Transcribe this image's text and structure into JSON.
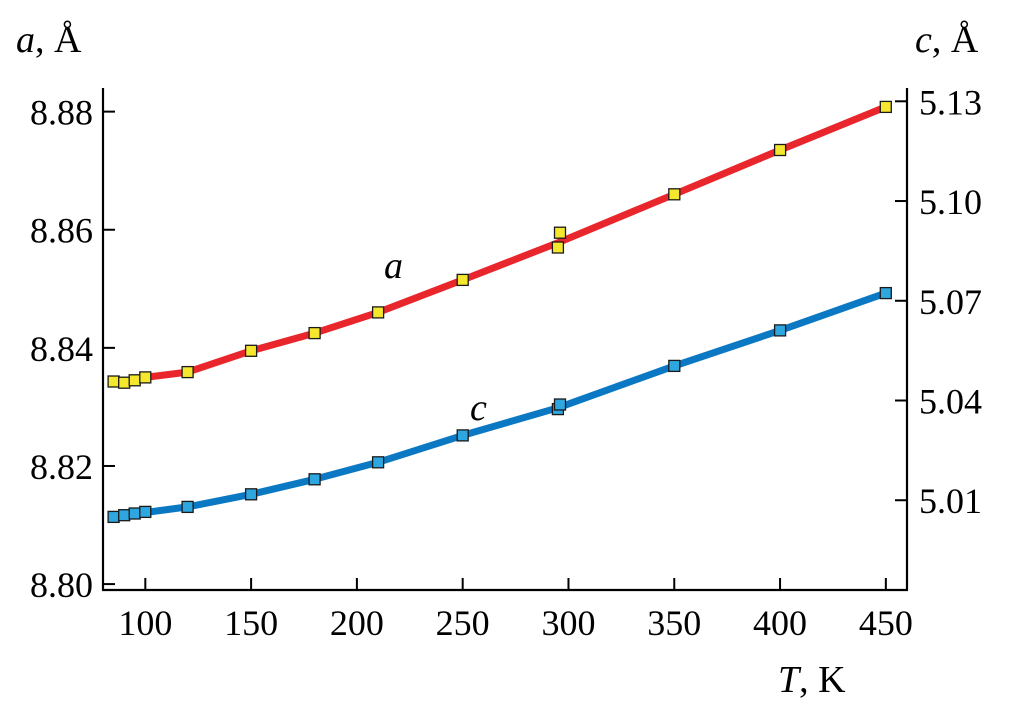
{
  "chart_data": {
    "type": "line",
    "x_axis": {
      "label_var": "T",
      "label_unit": ", K",
      "range": [
        80,
        460
      ],
      "ticks": [
        100,
        150,
        200,
        250,
        300,
        350,
        400,
        450
      ]
    },
    "y_left": {
      "label_var": "a",
      "label_unit": ", Å",
      "range": [
        8.799,
        8.884
      ],
      "ticks": [
        8.8,
        8.82,
        8.84,
        8.86,
        8.88
      ],
      "tick_labels": [
        "8.80",
        "8.82",
        "8.84",
        "8.86",
        "8.88"
      ]
    },
    "y_right": {
      "label_var": "c",
      "label_unit": ", Å",
      "range": [
        4.983,
        5.134
      ],
      "ticks": [
        5.01,
        5.04,
        5.07,
        5.1,
        5.13
      ],
      "tick_labels": [
        "5.01",
        "5.04",
        "5.07",
        "5.10",
        "5.13"
      ]
    },
    "series": [
      {
        "name": "a",
        "axis": "left",
        "color": "#e8262b",
        "marker_color": "#f5e62e",
        "points": [
          [
            85,
            8.8343
          ],
          [
            90,
            8.8341
          ],
          [
            95,
            8.8345
          ],
          [
            100,
            8.835
          ],
          [
            120,
            8.8359
          ],
          [
            150,
            8.8395
          ],
          [
            180,
            8.8425
          ],
          [
            210,
            8.846
          ],
          [
            250,
            8.8515
          ],
          [
            295,
            8.857
          ],
          [
            296,
            8.8595
          ],
          [
            350,
            8.866
          ],
          [
            400,
            8.8735
          ],
          [
            450,
            8.8808
          ]
        ],
        "line_points": [
          [
            85,
            8.8343
          ],
          [
            90,
            8.8343
          ],
          [
            100,
            8.835
          ],
          [
            120,
            8.8359
          ],
          [
            150,
            8.8395
          ],
          [
            180,
            8.8425
          ],
          [
            210,
            8.846
          ],
          [
            250,
            8.8515
          ],
          [
            295,
            8.8578
          ],
          [
            350,
            8.866
          ],
          [
            400,
            8.8735
          ],
          [
            450,
            8.8808
          ]
        ]
      },
      {
        "name": "c",
        "axis": "right",
        "color": "#0a78c2",
        "marker_color": "#2ea6e0",
        "points": [
          [
            85,
            5.005
          ],
          [
            90,
            5.0055
          ],
          [
            95,
            5.006
          ],
          [
            100,
            5.0065
          ],
          [
            120,
            5.008
          ],
          [
            150,
            5.0118
          ],
          [
            180,
            5.0163
          ],
          [
            210,
            5.0214
          ],
          [
            250,
            5.0295
          ],
          [
            295,
            5.0374
          ],
          [
            296,
            5.0388
          ],
          [
            350,
            5.0504
          ],
          [
            400,
            5.0611
          ],
          [
            450,
            5.0723
          ]
        ],
        "line_points": [
          [
            85,
            5.005
          ],
          [
            100,
            5.0063
          ],
          [
            120,
            5.008
          ],
          [
            150,
            5.0118
          ],
          [
            180,
            5.0163
          ],
          [
            210,
            5.0214
          ],
          [
            250,
            5.0295
          ],
          [
            295,
            5.0378
          ],
          [
            350,
            5.0504
          ],
          [
            400,
            5.0611
          ],
          [
            450,
            5.0723
          ]
        ]
      }
    ],
    "grid": false,
    "legend": "none"
  }
}
